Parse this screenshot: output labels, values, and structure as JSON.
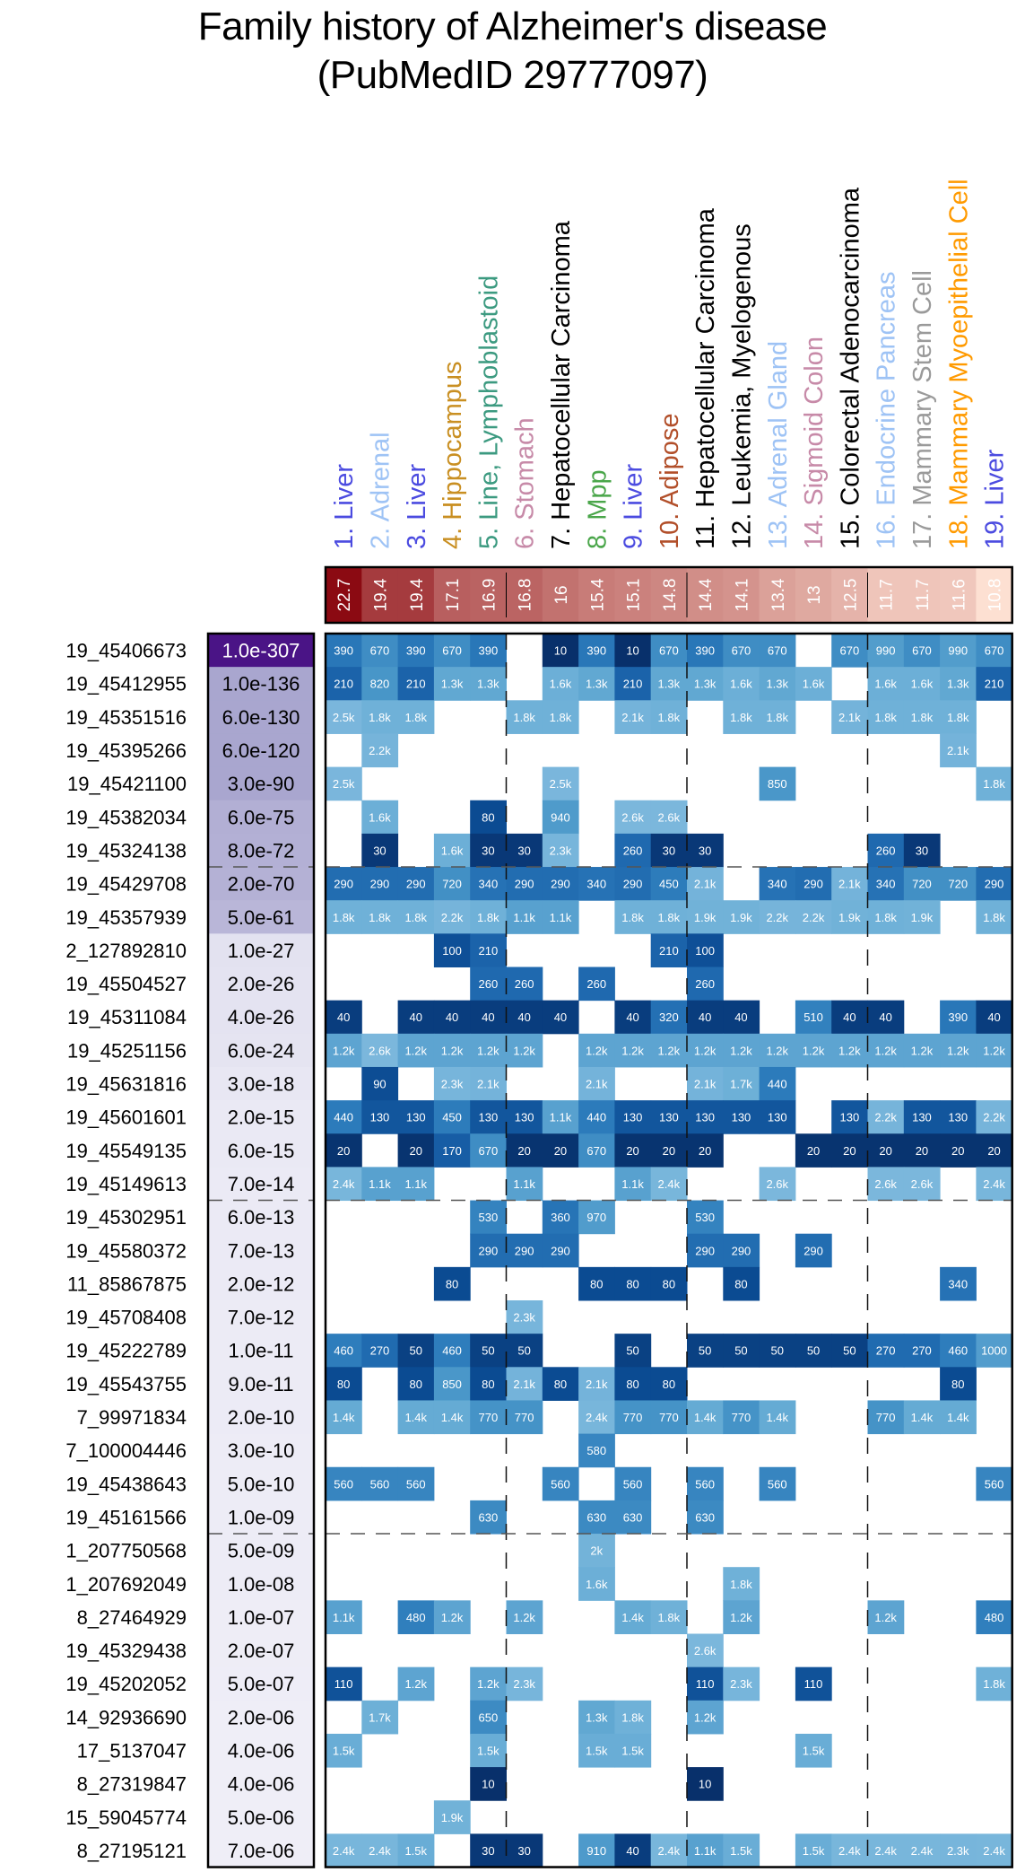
{
  "title_line1": "Family history of Alzheimer's disease",
  "title_line2": "(PubMedID 29777097)",
  "chart_data": {
    "type": "heatmap",
    "title": "Family history of Alzheimer's disease (PubMedID 29777097)",
    "columns": [
      {
        "label": "1. Liver",
        "color": "#4b4be0",
        "score": "22.7"
      },
      {
        "label": "2. Adrenal",
        "color": "#9ec3f5",
        "score": "19.4"
      },
      {
        "label": "3. Liver",
        "color": "#4b4be0",
        "score": "19.4"
      },
      {
        "label": "4. Hippocampus",
        "color": "#c98f22",
        "score": "17.1"
      },
      {
        "label": "5. Line, Lymphoblastoid",
        "color": "#3c9a80",
        "score": "16.9"
      },
      {
        "label": "6. Stomach",
        "color": "#c78aa8",
        "score": "16.8"
      },
      {
        "label": "7. Hepatocellular Carcinoma",
        "color": "#000000",
        "score": "16"
      },
      {
        "label": "8. Mpp",
        "color": "#4aa64a",
        "score": "15.4"
      },
      {
        "label": "9. Liver",
        "color": "#4b4be0",
        "score": "15.1"
      },
      {
        "label": "10. Adipose",
        "color": "#b24f2a",
        "score": "14.8"
      },
      {
        "label": "11. Hepatocellular Carcinoma",
        "color": "#000000",
        "score": "14.4"
      },
      {
        "label": "12. Leukemia, Myelogenous",
        "color": "#000000",
        "score": "14.1"
      },
      {
        "label": "13. Adrenal Gland",
        "color": "#9ec3f5",
        "score": "13.4"
      },
      {
        "label": "14. Sigmoid Colon",
        "color": "#c78aa8",
        "score": "13"
      },
      {
        "label": "15. Colorectal Adenocarcinoma",
        "color": "#000000",
        "score": "12.5"
      },
      {
        "label": "16. Endocrine Pancreas",
        "color": "#9ec3f5",
        "score": "11.7"
      },
      {
        "label": "17. Mammary Stem Cell",
        "color": "#9a9a9a",
        "score": "11.7"
      },
      {
        "label": "18. Mammary Myoepithelial Cell",
        "color": "#ff9a00",
        "score": "11.6"
      },
      {
        "label": "19. Liver",
        "color": "#4b4be0",
        "score": "10.8"
      }
    ],
    "score_range": [
      10.8,
      22.7
    ],
    "score_colors": {
      "low": "#fde0d2",
      "high": "#8b0a12"
    },
    "pvalue_colors": {
      "low": "#f1f0f8",
      "high": "#4a1486"
    },
    "cell_colors": {
      "small": "#08306b",
      "large": "#7bb3d9"
    },
    "column_group_dividers_after": [
      5,
      10,
      15
    ],
    "row_group_dividers_after": [
      7,
      17,
      27
    ],
    "rows": [
      {
        "snp": "19_45406673",
        "pvalue": "1.0e-307",
        "cells": [
          "390",
          "670",
          "390",
          "670",
          "390",
          "",
          "10",
          "390",
          "10",
          "670",
          "390",
          "670",
          "670",
          "",
          "670",
          "990",
          "670",
          "990",
          "670"
        ]
      },
      {
        "snp": "19_45412955",
        "pvalue": "1.0e-136",
        "cells": [
          "210",
          "820",
          "210",
          "1.3k",
          "1.3k",
          "",
          "1.6k",
          "1.3k",
          "210",
          "1.3k",
          "1.3k",
          "1.6k",
          "1.3k",
          "1.6k",
          "",
          "1.6k",
          "1.6k",
          "1.3k",
          "210"
        ]
      },
      {
        "snp": "19_45351516",
        "pvalue": "6.0e-130",
        "cells": [
          "2.5k",
          "1.8k",
          "1.8k",
          "",
          "",
          "1.8k",
          "1.8k",
          "",
          "2.1k",
          "1.8k",
          "",
          "1.8k",
          "1.8k",
          "",
          "2.1k",
          "1.8k",
          "1.8k",
          "1.8k",
          ""
        ]
      },
      {
        "snp": "19_45395266",
        "pvalue": "6.0e-120",
        "cells": [
          "",
          "2.2k",
          "",
          "",
          "",
          "",
          "",
          "",
          "",
          "",
          "",
          "",
          "",
          "",
          "",
          "",
          "",
          "2.1k",
          ""
        ]
      },
      {
        "snp": "19_45421100",
        "pvalue": "3.0e-90",
        "cells": [
          "2.5k",
          "",
          "",
          "",
          "",
          "",
          "2.5k",
          "",
          "",
          "",
          "",
          "",
          "850",
          "",
          "",
          "",
          "",
          "",
          "1.8k"
        ]
      },
      {
        "snp": "19_45382034",
        "pvalue": "6.0e-75",
        "cells": [
          "",
          "1.6k",
          "",
          "",
          "80",
          "",
          "940",
          "",
          "2.6k",
          "2.6k",
          "",
          "",
          "",
          "",
          "",
          "",
          "",
          "",
          ""
        ]
      },
      {
        "snp": "19_45324138",
        "pvalue": "8.0e-72",
        "cells": [
          "",
          "30",
          "",
          "1.6k",
          "30",
          "30",
          "2.3k",
          "",
          "260",
          "30",
          "30",
          "",
          "",
          "",
          "",
          "260",
          "30",
          "",
          ""
        ]
      },
      {
        "snp": "19_45429708",
        "pvalue": "2.0e-70",
        "cells": [
          "290",
          "290",
          "290",
          "720",
          "340",
          "290",
          "290",
          "340",
          "290",
          "450",
          "2.1k",
          "",
          "340",
          "290",
          "2.1k",
          "340",
          "720",
          "720",
          "290"
        ]
      },
      {
        "snp": "19_45357939",
        "pvalue": "5.0e-61",
        "cells": [
          "1.8k",
          "1.8k",
          "1.8k",
          "2.2k",
          "1.8k",
          "1.1k",
          "1.1k",
          "",
          "1.8k",
          "1.8k",
          "1.9k",
          "1.9k",
          "2.2k",
          "2.2k",
          "1.9k",
          "1.8k",
          "1.9k",
          "",
          "1.8k"
        ]
      },
      {
        "snp": "2_127892810",
        "pvalue": "1.0e-27",
        "cells": [
          "",
          "",
          "",
          "100",
          "210",
          "",
          "",
          "",
          "",
          "210",
          "100",
          "",
          "",
          "",
          "",
          "",
          "",
          "",
          ""
        ]
      },
      {
        "snp": "19_45504527",
        "pvalue": "2.0e-26",
        "cells": [
          "",
          "",
          "",
          "",
          "260",
          "260",
          "",
          "260",
          "",
          "",
          "260",
          "",
          "",
          "",
          "",
          "",
          "",
          "",
          ""
        ]
      },
      {
        "snp": "19_45311084",
        "pvalue": "4.0e-26",
        "cells": [
          "40",
          "",
          "40",
          "40",
          "40",
          "40",
          "40",
          "",
          "40",
          "320",
          "40",
          "40",
          "",
          "510",
          "40",
          "40",
          "",
          "390",
          "40"
        ]
      },
      {
        "snp": "19_45251156",
        "pvalue": "6.0e-24",
        "cells": [
          "1.2k",
          "2.6k",
          "1.2k",
          "1.2k",
          "1.2k",
          "1.2k",
          "",
          "1.2k",
          "1.2k",
          "1.2k",
          "1.2k",
          "1.2k",
          "1.2k",
          "1.2k",
          "1.2k",
          "1.2k",
          "1.2k",
          "1.2k",
          "1.2k"
        ]
      },
      {
        "snp": "19_45631816",
        "pvalue": "3.0e-18",
        "cells": [
          "",
          "90",
          "",
          "2.3k",
          "2.1k",
          "",
          "",
          "2.1k",
          "",
          "",
          "2.1k",
          "1.7k",
          "440",
          "",
          "",
          "",
          "",
          "",
          ""
        ]
      },
      {
        "snp": "19_45601601",
        "pvalue": "2.0e-15",
        "cells": [
          "440",
          "130",
          "130",
          "450",
          "130",
          "130",
          "1.1k",
          "440",
          "130",
          "130",
          "130",
          "130",
          "130",
          "",
          "130",
          "2.2k",
          "130",
          "130",
          "2.2k"
        ]
      },
      {
        "snp": "19_45549135",
        "pvalue": "6.0e-15",
        "cells": [
          "20",
          "",
          "20",
          "170",
          "670",
          "20",
          "20",
          "670",
          "20",
          "20",
          "20",
          "",
          "",
          "20",
          "20",
          "20",
          "20",
          "20",
          "20"
        ]
      },
      {
        "snp": "19_45149613",
        "pvalue": "7.0e-14",
        "cells": [
          "2.4k",
          "1.1k",
          "1.1k",
          "",
          "",
          "1.1k",
          "",
          "",
          "1.1k",
          "2.4k",
          "",
          "",
          "2.6k",
          "",
          "",
          "2.6k",
          "2.6k",
          "",
          "2.4k"
        ]
      },
      {
        "snp": "19_45302951",
        "pvalue": "6.0e-13",
        "cells": [
          "",
          "",
          "",
          "",
          "530",
          "",
          "360",
          "970",
          "",
          "",
          "530",
          "",
          "",
          "",
          "",
          "",
          "",
          "",
          ""
        ]
      },
      {
        "snp": "19_45580372",
        "pvalue": "7.0e-13",
        "cells": [
          "",
          "",
          "",
          "",
          "290",
          "290",
          "290",
          "",
          "",
          "",
          "290",
          "290",
          "",
          "290",
          "",
          "",
          "",
          "",
          ""
        ]
      },
      {
        "snp": "11_85867875",
        "pvalue": "2.0e-12",
        "cells": [
          "",
          "",
          "",
          "80",
          "",
          "",
          "",
          "80",
          "80",
          "80",
          "",
          "80",
          "",
          "",
          "",
          "",
          "",
          "340",
          ""
        ]
      },
      {
        "snp": "19_45708408",
        "pvalue": "7.0e-12",
        "cells": [
          "",
          "",
          "",
          "",
          "",
          "2.3k",
          "",
          "",
          "",
          "",
          "",
          "",
          "",
          "",
          "",
          "",
          "",
          "",
          ""
        ]
      },
      {
        "snp": "19_45222789",
        "pvalue": "1.0e-11",
        "cells": [
          "460",
          "270",
          "50",
          "460",
          "50",
          "50",
          "",
          "",
          "50",
          "",
          "50",
          "50",
          "50",
          "50",
          "50",
          "270",
          "270",
          "460",
          "1000"
        ]
      },
      {
        "snp": "19_45543755",
        "pvalue": "9.0e-11",
        "cells": [
          "80",
          "",
          "80",
          "850",
          "80",
          "2.1k",
          "80",
          "2.1k",
          "80",
          "80",
          "",
          "",
          "",
          "",
          "",
          "",
          "",
          "80",
          ""
        ]
      },
      {
        "snp": "7_99971834",
        "pvalue": "2.0e-10",
        "cells": [
          "1.4k",
          "",
          "1.4k",
          "1.4k",
          "770",
          "770",
          "",
          "2.4k",
          "770",
          "770",
          "1.4k",
          "770",
          "1.4k",
          "",
          "",
          "770",
          "1.4k",
          "1.4k",
          ""
        ]
      },
      {
        "snp": "7_100004446",
        "pvalue": "3.0e-10",
        "cells": [
          "",
          "",
          "",
          "",
          "",
          "",
          "",
          "580",
          "",
          "",
          "",
          "",
          "",
          "",
          "",
          "",
          "",
          "",
          ""
        ]
      },
      {
        "snp": "19_45438643",
        "pvalue": "5.0e-10",
        "cells": [
          "560",
          "560",
          "560",
          "",
          "",
          "",
          "560",
          "",
          "560",
          "",
          "560",
          "",
          "560",
          "",
          "",
          "",
          "",
          "",
          "560"
        ]
      },
      {
        "snp": "19_45161566",
        "pvalue": "1.0e-09",
        "cells": [
          "",
          "",
          "",
          "",
          "630",
          "",
          "",
          "630",
          "630",
          "",
          "630",
          "",
          "",
          "",
          "",
          "",
          "",
          "",
          ""
        ]
      },
      {
        "snp": "1_207750568",
        "pvalue": "5.0e-09",
        "cells": [
          "",
          "",
          "",
          "",
          "",
          "",
          "",
          "2k",
          "",
          "",
          "",
          "",
          "",
          "",
          "",
          "",
          "",
          "",
          ""
        ]
      },
      {
        "snp": "1_207692049",
        "pvalue": "1.0e-08",
        "cells": [
          "",
          "",
          "",
          "",
          "",
          "",
          "",
          "1.6k",
          "",
          "",
          "",
          "1.8k",
          "",
          "",
          "",
          "",
          "",
          "",
          ""
        ]
      },
      {
        "snp": "8_27464929",
        "pvalue": "1.0e-07",
        "cells": [
          "1.1k",
          "",
          "480",
          "1.2k",
          "",
          "1.2k",
          "",
          "",
          "1.4k",
          "1.8k",
          "",
          "1.2k",
          "",
          "",
          "",
          "1.2k",
          "",
          "",
          "480"
        ]
      },
      {
        "snp": "19_45329438",
        "pvalue": "2.0e-07",
        "cells": [
          "",
          "",
          "",
          "",
          "",
          "",
          "",
          "",
          "",
          "",
          "2.6k",
          "",
          "",
          "",
          "",
          "",
          "",
          "",
          ""
        ]
      },
      {
        "snp": "19_45202052",
        "pvalue": "5.0e-07",
        "cells": [
          "110",
          "",
          "1.2k",
          "",
          "1.2k",
          "2.3k",
          "",
          "",
          "",
          "",
          "110",
          "2.3k",
          "",
          "110",
          "",
          "",
          "",
          "",
          "1.8k"
        ]
      },
      {
        "snp": "14_92936690",
        "pvalue": "2.0e-06",
        "cells": [
          "",
          "1.7k",
          "",
          "",
          "650",
          "",
          "",
          "1.3k",
          "1.8k",
          "",
          "1.2k",
          "",
          "",
          "",
          "",
          "",
          "",
          "",
          ""
        ]
      },
      {
        "snp": "17_5137047",
        "pvalue": "4.0e-06",
        "cells": [
          "1.5k",
          "",
          "",
          "",
          "1.5k",
          "",
          "",
          "1.5k",
          "1.5k",
          "",
          "",
          "",
          "",
          "1.5k",
          "",
          "",
          "",
          "",
          ""
        ]
      },
      {
        "snp": "8_27319847",
        "pvalue": "4.0e-06",
        "cells": [
          "",
          "",
          "",
          "",
          "10",
          "",
          "",
          "",
          "",
          "",
          "10",
          "",
          "",
          "",
          "",
          "",
          "",
          "",
          ""
        ]
      },
      {
        "snp": "15_59045774",
        "pvalue": "5.0e-06",
        "cells": [
          "",
          "",
          "",
          "1.9k",
          "",
          "",
          "",
          "",
          "",
          "",
          "",
          "",
          "",
          "",
          "",
          "",
          "",
          "",
          ""
        ]
      },
      {
        "snp": "8_27195121",
        "pvalue": "7.0e-06",
        "cells": [
          "2.4k",
          "2.4k",
          "1.5k",
          "",
          "30",
          "30",
          "",
          "910",
          "40",
          "2.4k",
          "1.1k",
          "1.5k",
          "",
          "1.5k",
          "2.4k",
          "2.4k",
          "2.4k",
          "2.3k",
          "2.4k"
        ]
      }
    ]
  }
}
